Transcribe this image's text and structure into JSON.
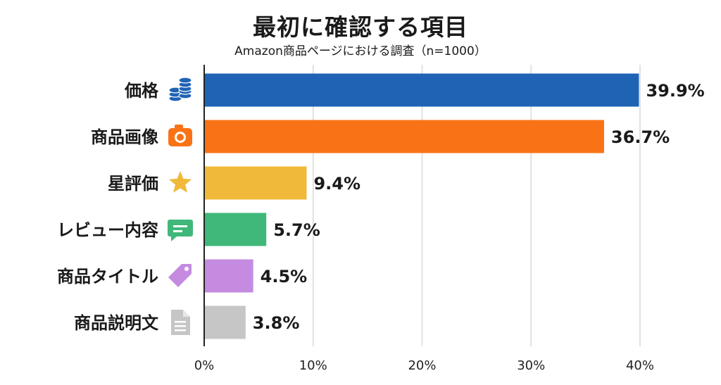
{
  "header": {
    "title": "最初に確認する項目",
    "subtitle": "Amazon商品ページにおける調査（n=1000）"
  },
  "chart_data": {
    "type": "bar",
    "orientation": "horizontal",
    "title": "最初に確認する項目",
    "subtitle": "Amazon商品ページにおける調査（n=1000）",
    "xlabel": "",
    "ylabel": "",
    "xlim": [
      0,
      40
    ],
    "x_ticks": [
      0,
      10,
      20,
      30,
      40
    ],
    "x_tick_labels": [
      "0%",
      "10%",
      "20%",
      "30%",
      "40%"
    ],
    "grid": true,
    "legend": "none",
    "categories": [
      "価格",
      "商品画像",
      "星評価",
      "レビュー内容",
      "商品タイトル",
      "商品説明文"
    ],
    "values": [
      39.9,
      36.7,
      9.4,
      5.7,
      4.5,
      3.8
    ],
    "value_labels": [
      "39.9%",
      "36.7%",
      "9.4%",
      "5.7%",
      "4.5%",
      "3.8%"
    ],
    "colors": [
      "#1f63b5",
      "#f97316",
      "#f0b93a",
      "#3fb87a",
      "#c58be0",
      "#c6c6c6"
    ],
    "icons": [
      "coins-icon",
      "camera-icon",
      "star-icon",
      "chat-bubble-icon",
      "tag-icon",
      "document-icon"
    ]
  }
}
